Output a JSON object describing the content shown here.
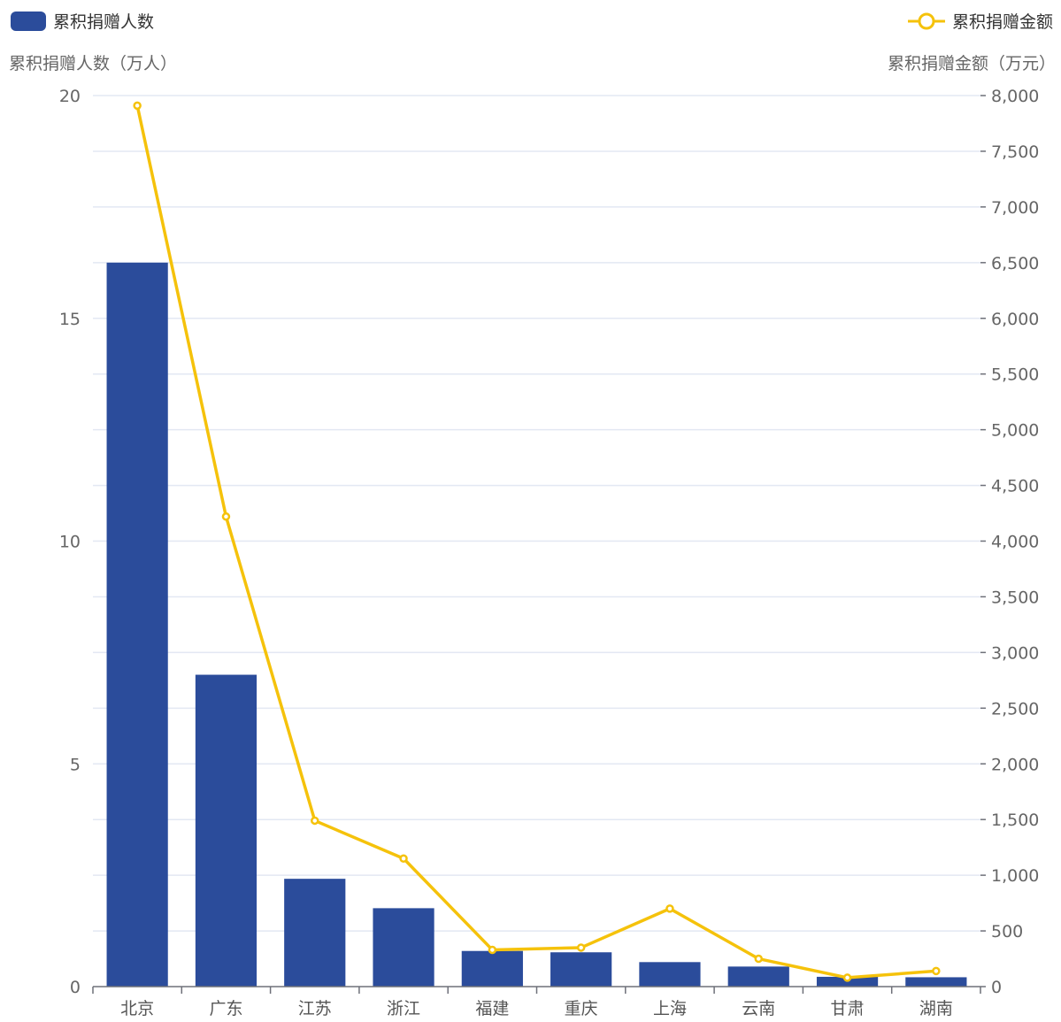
{
  "chart_data": {
    "type": "bar",
    "categories": [
      "北京",
      "广东",
      "江苏",
      "浙江",
      "福建",
      "重庆",
      "上海",
      "云南",
      "甘肃",
      "湖南"
    ],
    "series": [
      {
        "name": "累积捐赠人数",
        "type": "bar",
        "axis": "left",
        "color": "#2b4c9b",
        "values": [
          16.25,
          7.0,
          2.42,
          1.76,
          0.8,
          0.77,
          0.55,
          0.45,
          0.22,
          0.21
        ]
      },
      {
        "name": "累积捐赠金额",
        "type": "line",
        "axis": "right",
        "color": "#f5c20b",
        "values": [
          7910,
          4220,
          1490,
          1150,
          330,
          350,
          700,
          250,
          80,
          140
        ]
      }
    ],
    "yAxisLeft": {
      "name": "累积捐赠人数（万人）",
      "min": 0,
      "max": 20,
      "ticks": [
        0,
        5,
        10,
        15,
        20
      ],
      "tick_labels": [
        "0",
        "5",
        "10",
        "15",
        "20"
      ]
    },
    "yAxisRight": {
      "name": "累积捐赠金额（万元）",
      "min": 0,
      "max": 8000,
      "ticks": [
        0,
        500,
        1000,
        1500,
        2000,
        2500,
        3000,
        3500,
        4000,
        4500,
        5000,
        5500,
        6000,
        6500,
        7000,
        7500,
        8000
      ],
      "tick_labels": [
        "0",
        "500",
        "1,000",
        "1,500",
        "2,000",
        "2,500",
        "3,000",
        "3,500",
        "4,000",
        "4,500",
        "5,000",
        "5,500",
        "6,000",
        "6,500",
        "7,000",
        "7,500",
        "8,000"
      ]
    },
    "legend": {
      "placement": "top",
      "items": [
        "累积捐赠人数",
        "累积捐赠金额"
      ]
    },
    "grid": true
  }
}
